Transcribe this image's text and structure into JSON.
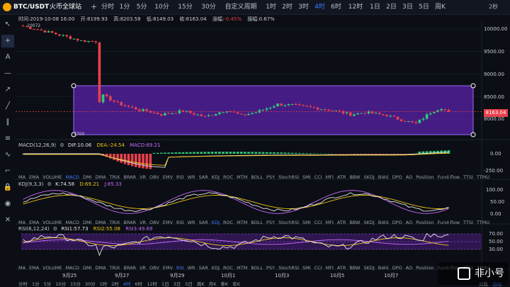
{
  "header": {
    "symbol": "BTC/USDT",
    "exchange": "火币全球站",
    "timeframes": [
      "分时",
      "1分",
      "5分",
      "10分",
      "15分",
      "30分",
      "1时",
      "2时",
      "3时",
      "4时",
      "6时",
      "12时",
      "1日",
      "2日",
      "3日",
      "5日",
      "周K"
    ],
    "custom_period": "自定义周期",
    "active_timeframe": "4时",
    "extra": [
      "分时",
      "1分",
      "5分",
      "10分",
      "15分",
      "30分"
    ],
    "right_label": "2秒"
  },
  "info": {
    "time": "时间:2019-10-08 16:00",
    "open": "开:8199.93",
    "high": "高:8203.58",
    "low": "低:8149.03",
    "close": "收:8163.04",
    "change_label": "涨幅:",
    "change_value": "-0.45%",
    "amplitude": "振幅:0.67%"
  },
  "main_chart": {
    "high_marker": "10072",
    "low_marker": "7700",
    "y_ticks": [
      "10000.00",
      "9500.00",
      "9000.00",
      "8500.00",
      "8000.00"
    ],
    "last_price": "8163.04"
  },
  "macd": {
    "label": "MACD(12,26,9)",
    "dif": "DIF:10.06",
    "dea": "DEA:-24.54",
    "macd": "MACD:69.21",
    "y_ticks": [
      "0.00",
      "-250.00"
    ]
  },
  "kdj": {
    "label": "KDJ(9,3,3)",
    "k": "K:74.58",
    "d": "D:69.21",
    "j": "J:85.33",
    "y_ticks": [
      "100.00",
      "50.00",
      "0.00"
    ]
  },
  "rsi": {
    "label": "RSI(6,12,24)",
    "rsi1": "RSI1:57.73",
    "rsi2": "RSI2:55.08",
    "rsi3": "RSI3:49.69",
    "y_ticks": [
      "70.00",
      "50.00",
      "30.00"
    ]
  },
  "indicator_tabs": [
    "MA",
    "EMA",
    "VOLUME",
    "MACD",
    "DMI",
    "DMA",
    "TRIX",
    "BRAR",
    "VR",
    "OBV",
    "EMV",
    "RSI",
    "WR",
    "SAR",
    "KDJ",
    "ROC",
    "MTM",
    "BOLL",
    "PSY",
    "StochRSI",
    "SMI",
    "CCI",
    "MFI",
    "ATR",
    "BBW",
    "SKDJ",
    "BIAS",
    "DPO",
    "AO",
    "Position",
    "Fund-flow",
    "TTSI",
    "TTMU"
  ],
  "x_labels": [
    "9月25",
    "9月27",
    "9月29",
    "10月1",
    "10月3",
    "10月5",
    "10月7"
  ],
  "bottom_timeframes": [
    "分时",
    "1分",
    "5分",
    "10分",
    "15分",
    "30分",
    "1时",
    "2时",
    "4时",
    "6时",
    "12时",
    "1日",
    "3日",
    "5日",
    "周K",
    "月K",
    "季K",
    "年K"
  ],
  "bottom_active": "4时",
  "bottom_right": [
    "对数",
    "自动"
  ],
  "watermark": "非小号",
  "colors": {
    "up": "#2fc87a",
    "down": "#e8404d",
    "accent": "#3d7cff",
    "selection": "#6b2fb8"
  },
  "tools": [
    "cursor-icon",
    "crosshair-icon",
    "text-icon",
    "horizontal-line-icon",
    "ray-icon",
    "trend-line-icon",
    "parallel-icon",
    "fib-icon",
    "wave-icon",
    "ruler-icon",
    "lock-icon",
    "eye-icon",
    "trash-icon"
  ]
}
